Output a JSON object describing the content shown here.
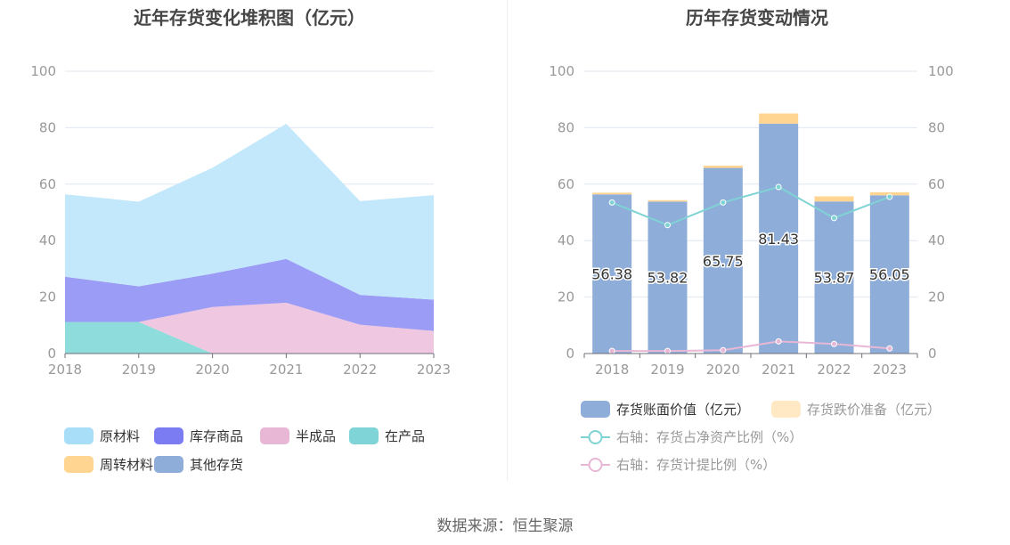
{
  "left_title": "近年存货变化堆积图（亿元）",
  "right_title": "历年存货变动情况",
  "footer": "数据来源：恒生聚源",
  "chart_data": [
    {
      "type": "area",
      "stacked": true,
      "title": "近年存货变化堆积图（亿元）",
      "x": [
        "2018",
        "2019",
        "2020",
        "2021",
        "2022",
        "2023"
      ],
      "ylim": [
        0,
        100
      ],
      "yticks": [
        0,
        20,
        40,
        60,
        80,
        100
      ],
      "grid": true,
      "legend_position": "bottom",
      "series": [
        {
          "name": "在产品",
          "color": "#8fdcdc",
          "values": [
            11.2,
            11.2,
            0,
            0,
            0,
            0
          ]
        },
        {
          "name": "半成品",
          "color": "#f0c7e0",
          "values": [
            0,
            0,
            16.5,
            18.0,
            10.2,
            8.0
          ]
        },
        {
          "name": "库存商品",
          "color": "#9b9cf5",
          "values": [
            16.0,
            12.6,
            11.8,
            15.5,
            10.6,
            11.1
          ]
        },
        {
          "name": "原材料",
          "color": "#c3e8fb",
          "values": [
            29.2,
            30.0,
            37.5,
            47.9,
            33.2,
            37.0
          ]
        },
        {
          "name": "周转材料",
          "color": "#ffd591",
          "values": [
            0,
            0,
            0,
            0,
            0,
            0
          ]
        },
        {
          "name": "其他存货",
          "color": "#8eadd9",
          "values": [
            0,
            0,
            0,
            0,
            0,
            0
          ]
        }
      ],
      "legend": [
        {
          "name": "原材料",
          "color": "#a9def8"
        },
        {
          "name": "库存商品",
          "color": "#7b7cf1"
        },
        {
          "name": "半成品",
          "color": "#e8b7d6"
        },
        {
          "name": "在产品",
          "color": "#7ed4d6"
        },
        {
          "name": "周转材料",
          "color": "#ffd591"
        },
        {
          "name": "其他存货",
          "color": "#8eadd9"
        }
      ]
    },
    {
      "type": "bar",
      "stacked": true,
      "title": "历年存货变动情况",
      "categories": [
        "2018",
        "2019",
        "2020",
        "2021",
        "2022",
        "2023"
      ],
      "ylim": [
        0,
        100
      ],
      "yticks": [
        0,
        20,
        40,
        60,
        80,
        100
      ],
      "y2lim": [
        0,
        100
      ],
      "y2ticks": [
        0,
        20,
        40,
        60,
        80,
        100
      ],
      "grid": true,
      "legend_position": "bottom",
      "series": [
        {
          "name": "存货账面价值（亿元）",
          "color": "#8eadd9",
          "values": [
            56.38,
            53.82,
            65.75,
            81.43,
            53.87,
            56.05
          ],
          "labels": [
            "56.38",
            "53.82",
            "65.75",
            "81.43",
            "53.87",
            "56.05"
          ]
        },
        {
          "name": "存货跌价准备（亿元）",
          "color": "#ffd591",
          "legend_color": "#ffe8c4",
          "values": [
            0.6,
            0.5,
            0.8,
            3.6,
            1.8,
            1.1
          ]
        }
      ],
      "lines": [
        {
          "name": "右轴：存货占净资产比例（%）",
          "color": "#7fd3d5",
          "axis": "right",
          "values": [
            53.5,
            45.5,
            53.5,
            59.0,
            48.0,
            55.5
          ]
        },
        {
          "name": "右轴：存货计提比例（%）",
          "color": "#e8b7d6",
          "axis": "right",
          "values": [
            0.9,
            0.9,
            1.2,
            4.3,
            3.4,
            1.8
          ]
        }
      ]
    }
  ]
}
